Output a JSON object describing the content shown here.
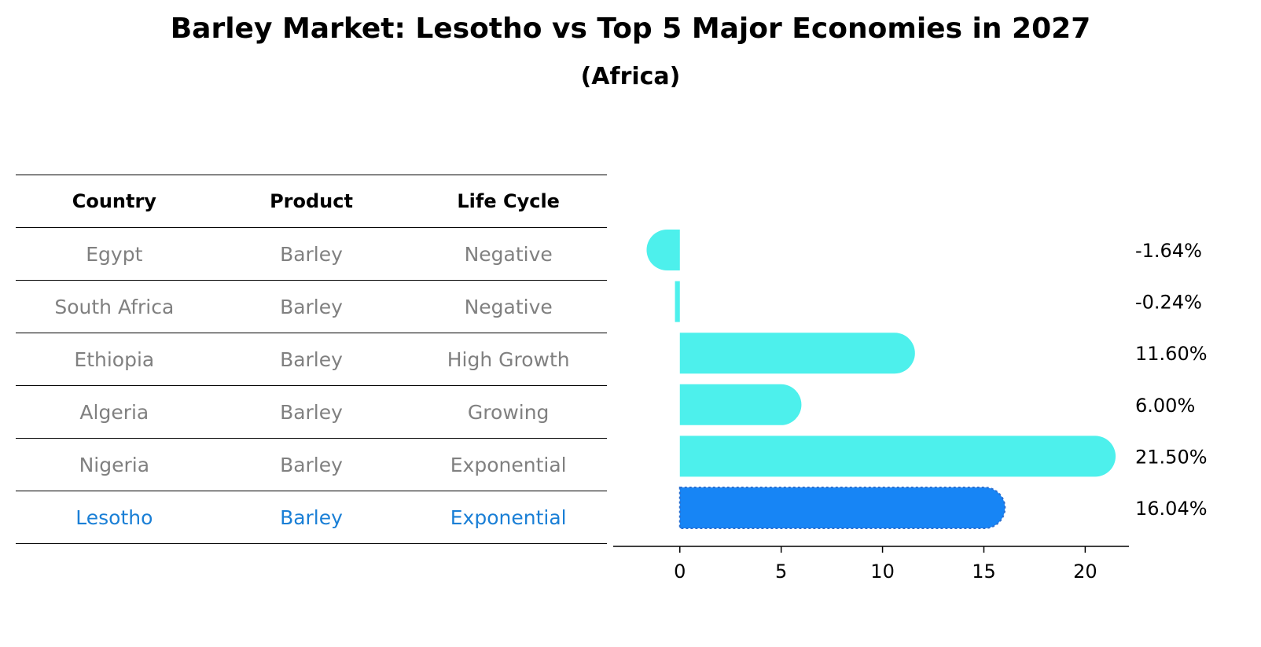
{
  "chart": {
    "title": "Barley Market: Lesotho vs Top 5 Major Economies in 2027",
    "subtitle": "(Africa)"
  },
  "table": {
    "headers": [
      "Country",
      "Product",
      "Life Cycle"
    ],
    "rows": [
      {
        "country": "Egypt",
        "product": "Barley",
        "life_cycle": "Negative"
      },
      {
        "country": "South Africa",
        "product": "Barley",
        "life_cycle": "Negative"
      },
      {
        "country": "Ethiopia",
        "product": "Barley",
        "life_cycle": "High Growth"
      },
      {
        "country": "Algeria",
        "product": "Barley",
        "life_cycle": "Growing"
      },
      {
        "country": "Nigeria",
        "product": "Barley",
        "life_cycle": "Exponential"
      },
      {
        "country": "Lesotho",
        "product": "Barley",
        "life_cycle": "Exponential"
      }
    ]
  },
  "chart_data": {
    "type": "bar",
    "orientation": "horizontal",
    "categories": [
      "Egypt",
      "South Africa",
      "Ethiopia",
      "Algeria",
      "Nigeria",
      "Lesotho"
    ],
    "values": [
      -1.64,
      -0.24,
      11.6,
      6.0,
      21.5,
      16.04
    ],
    "value_labels": [
      "-1.64%",
      "-0.24%",
      "11.60%",
      "6.00%",
      "21.50%",
      "16.04%"
    ],
    "highlight": "Lesotho",
    "xlim": [
      -2.9,
      22.7
    ],
    "xticks": [
      0,
      5,
      10,
      15,
      20
    ],
    "colors": {
      "default": "#4df0ec",
      "highlight": "#1785f5"
    }
  }
}
